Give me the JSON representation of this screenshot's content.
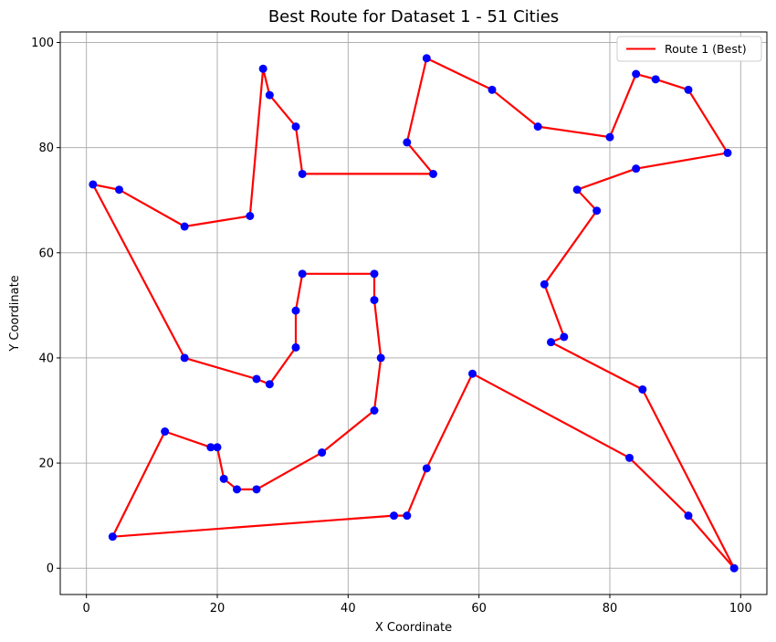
{
  "chart_data": {
    "type": "line",
    "title": "Best Route for Dataset 1 - 51 Cities",
    "xlabel": "X Coordinate",
    "ylabel": "Y Coordinate",
    "xlim": [
      -4,
      104
    ],
    "ylim": [
      -5,
      102
    ],
    "xticks": [
      0,
      20,
      40,
      60,
      80,
      100
    ],
    "yticks": [
      0,
      20,
      40,
      60,
      80,
      100
    ],
    "grid": true,
    "legend_position": "top-right",
    "series": [
      {
        "name": "Route 1 (Best)",
        "color": "#ff0000",
        "marker_color": "#0000ff",
        "points": [
          [
            1,
            73
          ],
          [
            15,
            40
          ],
          [
            26,
            36
          ],
          [
            28,
            35
          ],
          [
            32,
            42
          ],
          [
            32,
            49
          ],
          [
            33,
            56
          ],
          [
            44,
            56
          ],
          [
            44,
            51
          ],
          [
            45,
            40
          ],
          [
            44,
            30
          ],
          [
            36,
            22
          ],
          [
            26,
            15
          ],
          [
            23,
            15
          ],
          [
            21,
            17
          ],
          [
            20,
            23
          ],
          [
            19,
            23
          ],
          [
            12,
            26
          ],
          [
            4,
            6
          ],
          [
            47,
            10
          ],
          [
            49,
            10
          ],
          [
            52,
            19
          ],
          [
            59,
            37
          ],
          [
            83,
            21
          ],
          [
            92,
            10
          ],
          [
            99,
            0
          ],
          [
            85,
            34
          ],
          [
            71,
            43
          ],
          [
            73,
            44
          ],
          [
            70,
            54
          ],
          [
            78,
            68
          ],
          [
            75,
            72
          ],
          [
            84,
            76
          ],
          [
            98,
            79
          ],
          [
            92,
            91
          ],
          [
            87,
            93
          ],
          [
            84,
            94
          ],
          [
            80,
            82
          ],
          [
            69,
            84
          ],
          [
            62,
            91
          ],
          [
            52,
            97
          ],
          [
            49,
            81
          ],
          [
            53,
            75
          ],
          [
            33,
            75
          ],
          [
            32,
            84
          ],
          [
            28,
            90
          ],
          [
            27,
            95
          ],
          [
            25,
            67
          ],
          [
            15,
            65
          ],
          [
            5,
            72
          ],
          [
            1,
            73
          ]
        ]
      }
    ]
  }
}
